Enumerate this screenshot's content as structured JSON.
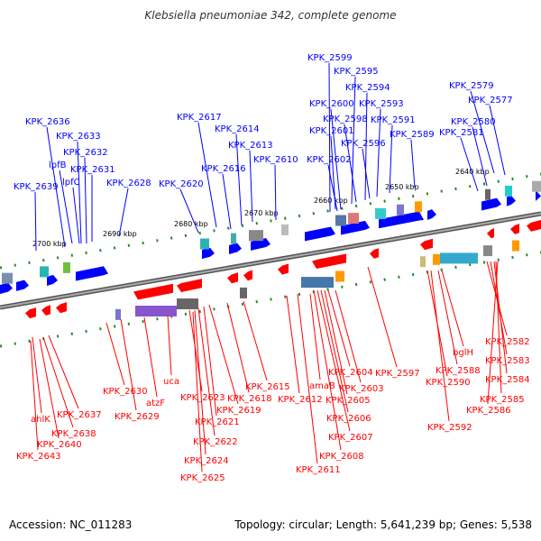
{
  "title": "Klebsiella pneumoniae 342, complete genome",
  "footer": {
    "accession": "Accession: NC_011283",
    "stats": "Topology: circular; Length: 5,641,239 bp; Genes: 5,538"
  },
  "colors": {
    "forward": "#0000ff",
    "reverse": "#ff0000",
    "backbone": "#888888"
  },
  "ticks": [
    "2640 kbp",
    "2650 kbp",
    "2660 kbp",
    "2670 kbp",
    "2680 kbp",
    "2690 kbp",
    "2700 kbp"
  ],
  "forward_labels": [
    "KPK_2599",
    "KPK_2595",
    "KPK_2594",
    "KPK_2593",
    "KPK_2591",
    "KPK_2600",
    "KPK_2598",
    "KPK_2601",
    "KPK_2596",
    "KPK_2589",
    "KPK_2602",
    "KPK_2579",
    "KPK_2577",
    "KPK_2580",
    "KPK_2581",
    "KPK_2636",
    "KPK_2633",
    "KPK_2632",
    "KPK_2631",
    "KPK_2628",
    "KPK_2639",
    "KPK_2617",
    "KPK_2614",
    "KPK_2613",
    "KPK_2610",
    "KPK_2616",
    "KPK_2620",
    "lpfB",
    "lpfC"
  ],
  "reverse_labels": [
    "KPK_2582",
    "KPK_2583",
    "KPK_2584",
    "KPK_2585",
    "KPK_2586",
    "KPK_2588",
    "bglH",
    "KPK_2590",
    "KPK_2592",
    "KPK_2597",
    "KPK_2604",
    "KPK_2603",
    "KPK_2605",
    "KPK_2606",
    "KPK_2607",
    "KPK_2608",
    "KPK_2611",
    "amaB",
    "KPK_2612",
    "KPK_2615",
    "KPK_2618",
    "KPK_2619",
    "KPK_2621",
    "KPK_2622",
    "KPK_2623",
    "KPK_2624",
    "KPK_2625",
    "uca",
    "atzF",
    "KPK_2629",
    "KPK_2630",
    "KPK_2637",
    "KPK_2638",
    "KPK_2640",
    "KPK_2643",
    "ahlK"
  ]
}
